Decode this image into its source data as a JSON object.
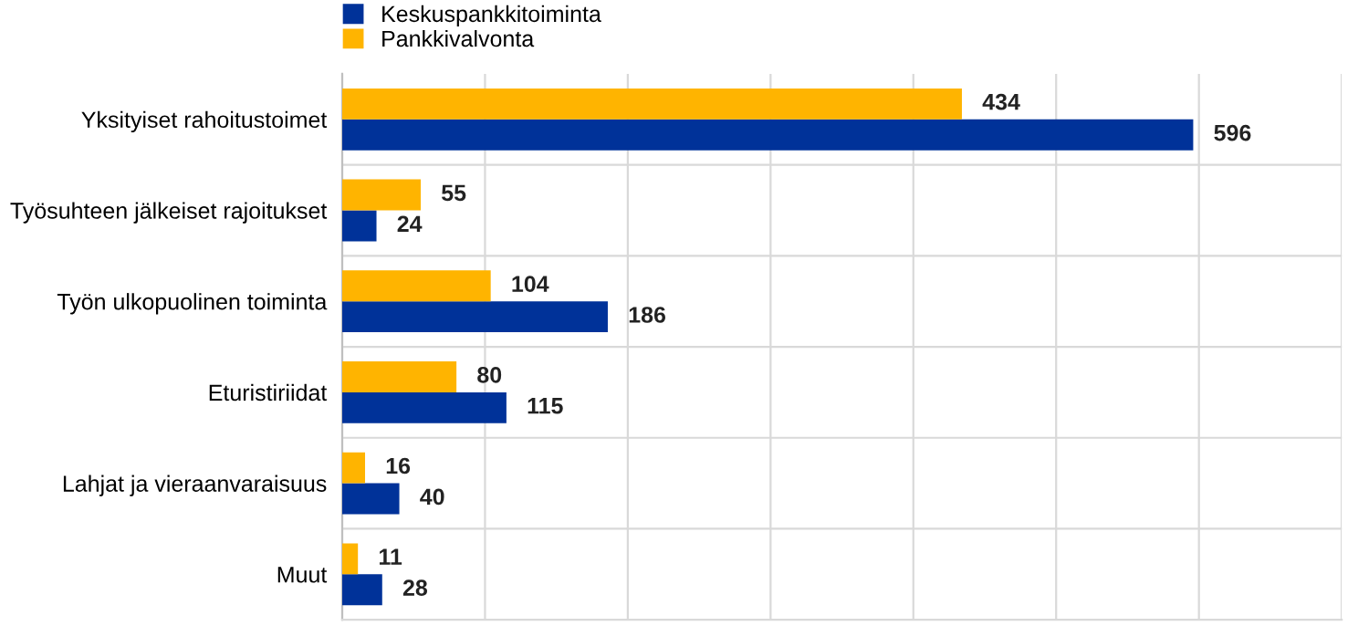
{
  "chart_data": {
    "type": "bar",
    "orientation": "horizontal",
    "categories": [
      "Yksityiset rahoitustoimet",
      "Työsuhteen jälkeiset rajoitukset",
      "Työn ulkopuolinen toiminta",
      "Eturistiriidat",
      "Lahjat ja vieraanvaraisuus",
      "Muut"
    ],
    "series": [
      {
        "name": "Keskuspankkitoiminta",
        "color": "#003299",
        "values": [
          596,
          24,
          186,
          115,
          40,
          28
        ]
      },
      {
        "name": "Pankkivalvonta",
        "color": "#ffb400",
        "values": [
          434,
          55,
          104,
          80,
          16,
          11
        ]
      }
    ],
    "xlim": [
      0,
      700
    ],
    "xticks": [
      {
        "value": 0,
        "label": null
      },
      {
        "value": 100,
        "label": null
      },
      {
        "value": 200,
        "label": null
      },
      {
        "value": 300,
        "label": null
      },
      {
        "value": 400,
        "label": null
      },
      {
        "value": 500,
        "label": null
      },
      {
        "value": 600,
        "label": null
      },
      {
        "value": 700,
        "label": null
      }
    ],
    "tick_labels": "y",
    "grid": true,
    "data_labels": true,
    "legend": "top left"
  }
}
